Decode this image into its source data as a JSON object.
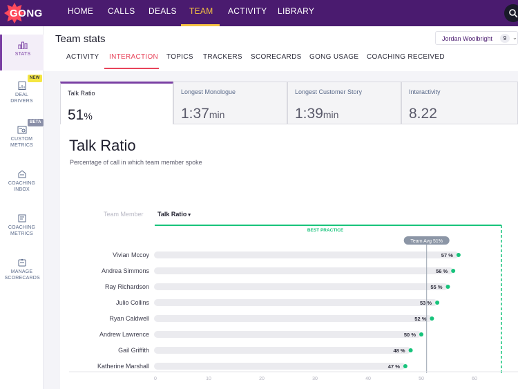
{
  "app": {
    "logo_text": "GONG"
  },
  "topnav": {
    "items": [
      {
        "label": "HOME",
        "active": false
      },
      {
        "label": "CALLS",
        "active": false
      },
      {
        "label": "DEALS",
        "active": false
      },
      {
        "label": "TEAM",
        "active": true
      },
      {
        "label": "ACTIVITY",
        "active": false
      },
      {
        "label": "LIBRARY",
        "active": false
      }
    ],
    "search_icon": "search-icon"
  },
  "sidebar": {
    "items": [
      {
        "label": "STATS",
        "icon": "bar-chart-icon",
        "active": true
      },
      {
        "label": "DEAL DRIVERS",
        "icon": "document-chart-icon",
        "badge": "NEW"
      },
      {
        "label": "CUSTOM METRICS",
        "icon": "custom-metrics-icon",
        "badge": "BETA"
      },
      {
        "label": "COACHING INBOX",
        "icon": "inbox-icon"
      },
      {
        "label": "COACHING METRICS",
        "icon": "coaching-metrics-icon"
      },
      {
        "label": "MANAGE SCORECARDS",
        "icon": "scorecard-icon"
      }
    ]
  },
  "header": {
    "title": "Team stats",
    "user": {
      "name": "Jordan Woolbright",
      "count": "9"
    }
  },
  "subtabs": [
    {
      "label": "ACTIVITY",
      "active": false
    },
    {
      "label": "INTERACTION",
      "active": true
    },
    {
      "label": "TOPICS",
      "active": false
    },
    {
      "label": "TRACKERS",
      "active": false
    },
    {
      "label": "SCORECARDS",
      "active": false
    },
    {
      "label": "GONG USAGE",
      "active": false
    },
    {
      "label": "COACHING RECEIVED",
      "active": false
    }
  ],
  "cards": [
    {
      "label": "Talk Ratio",
      "value": "51",
      "unit": "%",
      "active": true
    },
    {
      "label": "Longest Monologue",
      "value": "1:37",
      "unit": "min",
      "active": false
    },
    {
      "label": "Longest Customer Story",
      "value": "1:39",
      "unit": "min",
      "active": false
    },
    {
      "label": "Interactivity",
      "value": "8.22",
      "unit": "",
      "active": false
    }
  ],
  "chart_section": {
    "title": "Talk Ratio",
    "subtitle": "Percentage of call in which team member spoke",
    "col_member": "Team Member",
    "col_ratio": "Talk Ratio"
  },
  "chart_data": {
    "type": "bar",
    "orientation": "horizontal",
    "categories": [
      "Vivian Mccoy",
      "Andrea Simmons",
      "Ray Richardson",
      "Julio Collins",
      "Ryan Caldwell",
      "Andrew Lawrence",
      "Gail Griffith",
      "Katherine Marshall"
    ],
    "values": [
      57,
      56,
      55,
      53,
      52,
      50,
      48,
      47
    ],
    "value_labels": [
      "57 %",
      "56 %",
      "55 %",
      "53 %",
      "52 %",
      "50 %",
      "48 %",
      "47 %"
    ],
    "xlim": [
      0,
      65
    ],
    "xticks": [
      "0",
      "10",
      "20",
      "30",
      "40",
      "50",
      "60"
    ],
    "team_avg": 51,
    "team_avg_label": "Team Avg 51%",
    "best_practice_label": "BEST PRACTICE",
    "colors": {
      "bar": "#ebebef",
      "dot": "#17c37b",
      "best_practice": "#17c37b",
      "avg_line": "#9aa3b0",
      "avg_pill": "#8c96a6"
    }
  }
}
